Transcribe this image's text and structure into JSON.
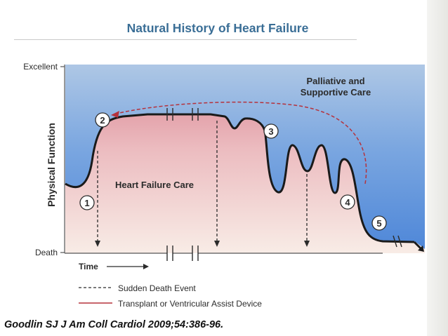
{
  "slide": {
    "title": "Natural History of Heart Failure",
    "citation": "Goodlin SJ J Am Coll Cardiol 2009;54:386-96."
  },
  "diagram": {
    "y_axis": {
      "label": "Physical Function",
      "top_label": "Excellent",
      "bottom_label": "Death"
    },
    "x_axis": {
      "label": "Time"
    },
    "region_labels": {
      "palliative": [
        "Palliative and",
        "Supportive Care"
      ],
      "heart_failure": "Heart Failure Care"
    },
    "stages": [
      "1",
      "2",
      "3",
      "4",
      "5"
    ],
    "legend": [
      {
        "label": "Sudden Death Event",
        "style": "dashed"
      },
      {
        "label": "Transplant or Ventricular Assist Device",
        "style": "solid"
      }
    ],
    "colors": {
      "top_blue": "#a9c3e3",
      "bottom_blue": "#5a8fd8",
      "pink_peak": "#d9838f",
      "curve": "#1a1a1a",
      "arc": "#b5323c"
    }
  }
}
